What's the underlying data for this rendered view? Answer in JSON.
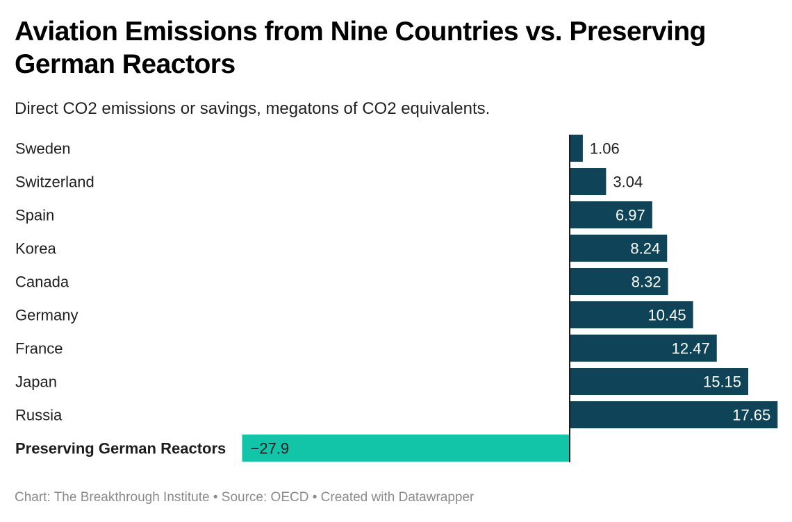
{
  "header": {
    "title": "Aviation Emissions from Nine Countries vs. Preserving German Reactors",
    "subtitle": "Direct CO2 emissions or savings, megatons of CO2 equivalents."
  },
  "footer": {
    "text": "Chart: The Breakthrough Institute • Source: OECD • Created with Datawrapper"
  },
  "colors": {
    "positive": "#0f4458",
    "negative": "#12c4a8",
    "axis": "#1d1d1d",
    "label_inside_dark_bar": "#ffffff",
    "label_dark": "#1d1d1d"
  },
  "chart_data": {
    "type": "bar",
    "orientation": "horizontal",
    "title": "Aviation Emissions from Nine Countries vs. Preserving German Reactors",
    "subtitle": "Direct CO2 emissions or savings, megatons of CO2 equivalents.",
    "xlabel": "",
    "ylabel": "",
    "categories": [
      "Sweden",
      "Switzerland",
      "Spain",
      "Korea",
      "Canada",
      "Germany",
      "France",
      "Japan",
      "Russia",
      "Preserving German Reactors"
    ],
    "values": [
      1.06,
      3.04,
      6.97,
      8.24,
      8.32,
      10.45,
      12.47,
      15.15,
      17.65,
      -27.9
    ],
    "value_labels": [
      "1.06",
      "3.04",
      "6.97",
      "8.24",
      "8.32",
      "10.45",
      "12.47",
      "15.15",
      "17.65",
      "−27.9"
    ],
    "highlighted_category": "Preserving German Reactors",
    "xlim": [
      -27.9,
      17.65
    ],
    "grid": false,
    "legend": "none"
  }
}
